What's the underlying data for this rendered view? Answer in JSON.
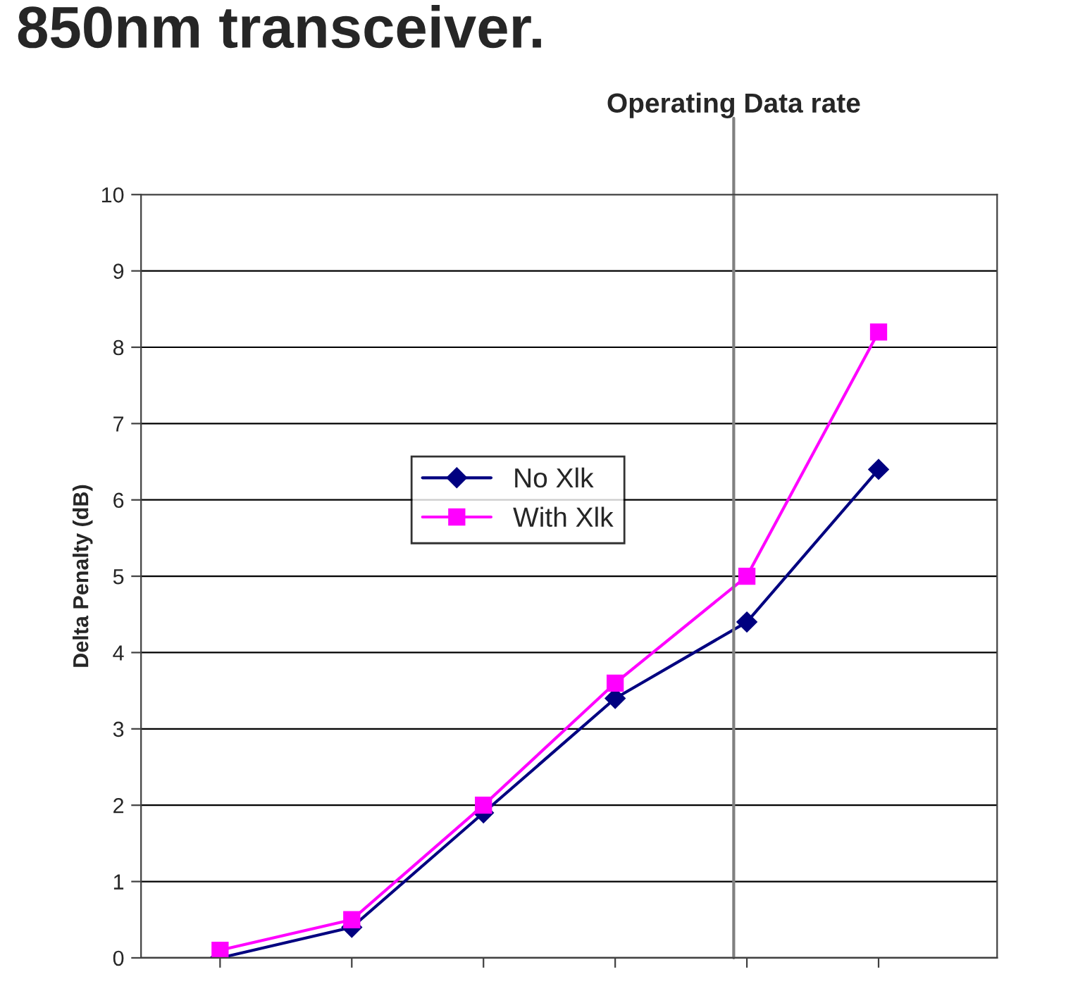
{
  "chart_data": {
    "type": "line",
    "title": "850nm transceiver.",
    "ylabel": "Delta Penalty (dB)",
    "categories": [
      null,
      null,
      null,
      null,
      null,
      null
    ],
    "ylim": [
      0,
      10
    ],
    "yticks": [
      0,
      1,
      2,
      3,
      4,
      5,
      6,
      7,
      8,
      9,
      10
    ],
    "grid": "y",
    "legend": "center left",
    "series": [
      {
        "name": "No Xlk",
        "color": "#000080",
        "marker": "diamond",
        "values": [
          0,
          0.4,
          1.9,
          3.4,
          4.4,
          6.4
        ]
      },
      {
        "name": "With Xlk",
        "color": "#ff00ff",
        "marker": "square",
        "values": [
          0.1,
          0.5,
          2.0,
          3.6,
          5.0,
          8.2
        ]
      }
    ],
    "annotations": [
      "Operating Data rate"
    ]
  }
}
